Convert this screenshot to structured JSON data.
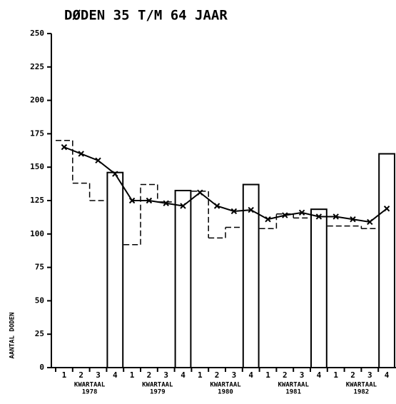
{
  "chart_data": {
    "type": "bar-line",
    "title": "DØDEN 35 T/M 64 JAAR",
    "y_label": "AANTAL DODEN",
    "categories": [
      "1",
      "2",
      "3",
      "4",
      "1",
      "2",
      "3",
      "4",
      "1",
      "2",
      "3",
      "4",
      "1",
      "2",
      "3",
      "4",
      "1",
      "2",
      "3",
      "4"
    ],
    "groups": [
      {
        "label": "KWARTAAL",
        "year": "1978"
      },
      {
        "label": "KWARTAAL",
        "year": "1979"
      },
      {
        "label": "KWARTAAL",
        "year": "1980"
      },
      {
        "label": "KWARTAAL",
        "year": "1981"
      },
      {
        "label": "KWARTAAL",
        "year": "1982"
      }
    ],
    "series": [
      {
        "style": "bar",
        "color": "#000000",
        "values": [
          null,
          null,
          null,
          146,
          null,
          null,
          null,
          132.5,
          null,
          null,
          null,
          137,
          null,
          null,
          null,
          118.5,
          null,
          null,
          null,
          160
        ]
      },
      {
        "style": "dashed-step",
        "color": "#000000",
        "values": [
          170,
          138,
          125,
          null,
          92,
          137,
          124,
          null,
          132,
          97,
          105,
          null,
          104,
          115,
          112,
          null,
          106,
          106,
          104,
          null
        ]
      },
      {
        "style": "line-marker",
        "color": "#000000",
        "values": [
          165,
          160,
          155,
          145,
          125,
          125,
          123,
          121,
          131,
          121,
          117,
          118,
          111,
          114,
          116,
          113,
          113,
          111,
          109,
          119
        ]
      }
    ],
    "ylim": [
      0,
      250
    ],
    "yticks": [
      0,
      25,
      50,
      75,
      100,
      125,
      150,
      175,
      200,
      225,
      250
    ]
  }
}
